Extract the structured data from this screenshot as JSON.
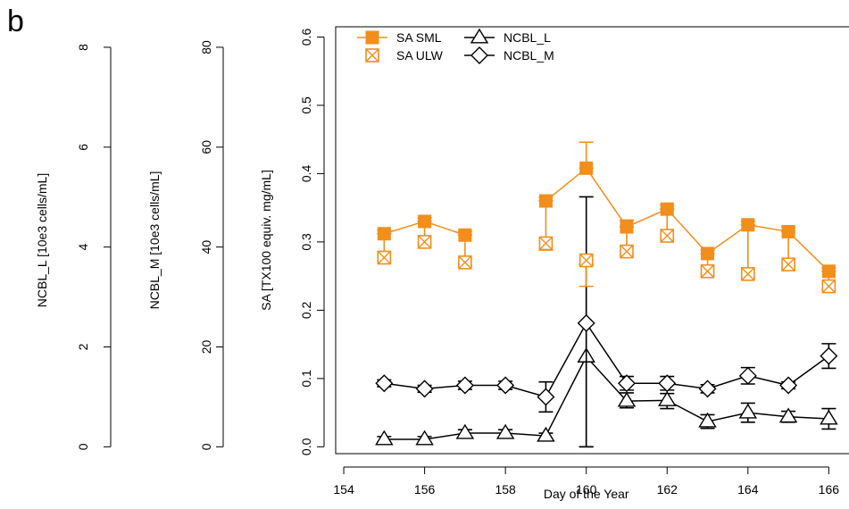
{
  "panel_label": "b",
  "chart_data": {
    "type": "line",
    "xlabel": "Day of the Year",
    "xlim": [
      153.8,
      166.5
    ],
    "xticks": [
      154,
      156,
      158,
      160,
      162,
      164,
      166
    ],
    "axes": {
      "sa": {
        "label": "SA [TX100 equiv. mg/mL]",
        "ylim": [
          -0.01,
          0.615
        ],
        "ticks": [
          "0.0",
          "0.1",
          "0.2",
          "0.3",
          "0.4",
          "0.5",
          "0.6"
        ]
      },
      "ncbl_m": {
        "label": "NCBL_M [10e3 cells/mL]",
        "ylim": [
          0,
          80
        ],
        "ticks": [
          "0",
          "20",
          "40",
          "60",
          "80"
        ]
      },
      "ncbl_l": {
        "label": "NCBL_L [10e3 cells/mL]",
        "ylim": [
          0,
          8
        ],
        "ticks": [
          "0",
          "2",
          "4",
          "6",
          "8"
        ]
      }
    },
    "colors": {
      "orange": "#f28e1c",
      "black": "#000000"
    },
    "series": [
      {
        "name": "SA SML",
        "axis": "sa",
        "color": "#f28e1c",
        "marker": "filled-square",
        "segments": [
          [
            {
              "x": 155,
              "y": 0.312,
              "err": [
                0,
                0.005
              ]
            },
            {
              "x": 156,
              "y": 0.33,
              "err": [
                0,
                0.005
              ]
            },
            {
              "x": 157,
              "y": 0.31,
              "err": [
                0,
                0.005
              ]
            }
          ],
          [
            {
              "x": 159,
              "y": 0.36,
              "err": [
                0,
                0.005
              ]
            },
            {
              "x": 160,
              "y": 0.408,
              "err": [
                0,
                0.038
              ]
            },
            {
              "x": 161,
              "y": 0.322,
              "err": [
                0,
                0.01
              ]
            },
            {
              "x": 162,
              "y": 0.348,
              "err": [
                0,
                0.006
              ]
            },
            {
              "x": 163,
              "y": 0.283,
              "err": [
                0,
                0.005
              ]
            },
            {
              "x": 164,
              "y": 0.325,
              "err": [
                0,
                0.005
              ]
            },
            {
              "x": 165,
              "y": 0.315,
              "err": [
                0,
                0.007
              ]
            },
            {
              "x": 166,
              "y": 0.257,
              "err": [
                0,
                0.005
              ]
            }
          ]
        ]
      },
      {
        "name": "SA ULW",
        "axis": "sa",
        "color": "#f28e1c",
        "marker": "boxed-x",
        "points": [
          {
            "x": 155,
            "y": 0.277,
            "err": [
              0.005,
              0.035
            ]
          },
          {
            "x": 156,
            "y": 0.3,
            "err": [
              0.005,
              0.03
            ]
          },
          {
            "x": 157,
            "y": 0.27,
            "err": [
              0.005,
              0.04
            ]
          },
          {
            "x": 159,
            "y": 0.298,
            "err": [
              0.01,
              0.062
            ]
          },
          {
            "x": 160,
            "y": 0.273,
            "err": [
              0.038,
              0
            ]
          },
          {
            "x": 161,
            "y": 0.286,
            "err": [
              0.005,
              0.036
            ]
          },
          {
            "x": 162,
            "y": 0.309,
            "err": [
              0.005,
              0.039
            ]
          },
          {
            "x": 163,
            "y": 0.257,
            "err": [
              0.005,
              0.026
            ]
          },
          {
            "x": 164,
            "y": 0.253,
            "err": [
              0.005,
              0.072
            ]
          },
          {
            "x": 165,
            "y": 0.267,
            "err": [
              0.005,
              0.048
            ]
          },
          {
            "x": 166,
            "y": 0.235,
            "err": [
              0.005,
              0.022
            ]
          }
        ]
      },
      {
        "name": "NCBL_L",
        "axis": "sa",
        "color": "#000000",
        "marker": "open-triangle",
        "points": [
          {
            "x": 155,
            "y": 0.011,
            "err": [
              0.004,
              0.004
            ]
          },
          {
            "x": 156,
            "y": 0.011,
            "err": [
              0.004,
              0.004
            ]
          },
          {
            "x": 157,
            "y": 0.02,
            "err": [
              0.005,
              0.005
            ]
          },
          {
            "x": 158,
            "y": 0.02,
            "err": [
              0.005,
              0.005
            ]
          },
          {
            "x": 159,
            "y": 0.016,
            "err": [
              0.004,
              0.004
            ]
          },
          {
            "x": 160,
            "y": 0.132,
            "err": [
              0.132,
              0.135
            ]
          },
          {
            "x": 161,
            "y": 0.067,
            "err": [
              0.01,
              0.012
            ]
          },
          {
            "x": 162,
            "y": 0.068,
            "err": [
              0.012,
              0.01
            ]
          },
          {
            "x": 163,
            "y": 0.037,
            "err": [
              0.01,
              0.01
            ]
          },
          {
            "x": 164,
            "y": 0.05,
            "err": [
              0.014,
              0.014
            ]
          },
          {
            "x": 165,
            "y": 0.044,
            "err": [
              0.008,
              0.008
            ]
          },
          {
            "x": 166,
            "y": 0.041,
            "err": [
              0.015,
              0.015
            ]
          }
        ]
      },
      {
        "name": "NCBL_M",
        "axis": "sa",
        "color": "#000000",
        "marker": "open-diamond",
        "points": [
          {
            "x": 155,
            "y": 0.093,
            "err": [
              0.005,
              0.005
            ]
          },
          {
            "x": 156,
            "y": 0.085,
            "err": [
              0.005,
              0.005
            ]
          },
          {
            "x": 157,
            "y": 0.09,
            "err": [
              0.006,
              0.006
            ]
          },
          {
            "x": 158,
            "y": 0.09,
            "err": [
              0.006,
              0.006
            ]
          },
          {
            "x": 159,
            "y": 0.073,
            "err": [
              0.022,
              0.022
            ]
          },
          {
            "x": 160,
            "y": 0.181,
            "err": [
              0.181,
              0.185
            ]
          },
          {
            "x": 161,
            "y": 0.093,
            "err": [
              0.01,
              0.01
            ]
          },
          {
            "x": 162,
            "y": 0.093,
            "err": [
              0.01,
              0.01
            ]
          },
          {
            "x": 163,
            "y": 0.085,
            "err": [
              0.006,
              0.006
            ]
          },
          {
            "x": 164,
            "y": 0.104,
            "err": [
              0.012,
              0.012
            ]
          },
          {
            "x": 165,
            "y": 0.09,
            "err": [
              0.005,
              0.005
            ]
          },
          {
            "x": 166,
            "y": 0.133,
            "err": [
              0.018,
              0.018
            ]
          }
        ]
      }
    ],
    "legend": {
      "position": "top-left",
      "items": [
        "SA SML",
        "SA ULW",
        "NCBL_L",
        "NCBL_M"
      ]
    }
  }
}
